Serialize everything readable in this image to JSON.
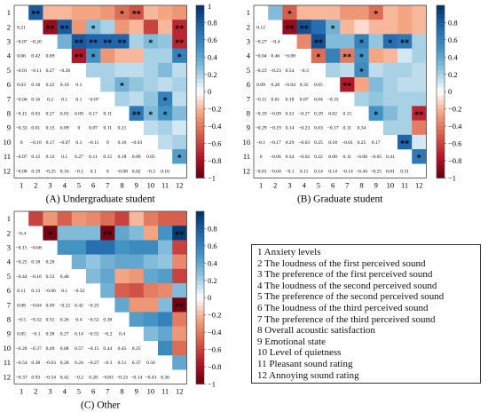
{
  "chart_data": [
    {
      "type": "heatmap",
      "title": "(A) Undergraduate student",
      "labels": [
        "1",
        "2",
        "3",
        "4",
        "5",
        "6",
        "7",
        "8",
        "9",
        "10",
        "11",
        "12"
      ],
      "colorbar": {
        "range": [
          -1,
          1
        ],
        "ticks": [
          "1",
          "0.8",
          "0.6",
          "0.4",
          "0.2",
          "0",
          "−0.2",
          "−0.4",
          "−0.6",
          "−0.8",
          "−1"
        ]
      },
      "lower": [
        [],
        [
          "0.21"
        ],
        [
          "−0.07",
          "−0.20"
        ],
        [
          "0.06",
          "0.42",
          "0.09"
        ],
        [
          "−0.01",
          "−0.11",
          "0.27",
          "−0.26"
        ],
        [
          "0.03",
          "0.18",
          "0.22",
          "0.19",
          "0.1"
        ],
        [
          "−0.06",
          "0.16",
          "0.2",
          "0.1",
          "0.1",
          "−0.07"
        ],
        [
          "−0.15",
          "0.03",
          "0.27",
          "0.03",
          "0.09",
          "0.17",
          "0.11"
        ],
        [
          "−0.33",
          "0.01",
          "0.13",
          "0.09",
          "0",
          "0.07",
          "0.11",
          "0.21"
        ],
        [
          "0",
          "−0.16",
          "0.17",
          "−0.07",
          "0.1",
          "−0.11",
          "0",
          "0.16",
          "−0.03"
        ],
        [
          "−0.07",
          "0.12",
          "0.12",
          "0.1",
          "0.27",
          "0.11",
          "0.15",
          "0.18",
          "0.09",
          "0.05"
        ],
        [
          "−0.08",
          "0.19",
          "−0.25",
          "0.16",
          "−0.1",
          "0.1",
          "0",
          "−0.08",
          "0.02",
          "−0.3",
          "0.16"
        ]
      ],
      "upper": [
        [
          null,
          0.8,
          -0.2,
          -0.2,
          -0.25,
          -0.25,
          -0.3,
          -0.45,
          -0.55,
          -0.2,
          -0.25,
          -0.3
        ],
        [
          null,
          null,
          -0.85,
          0.8,
          -0.3,
          0.3,
          0.2,
          -0.3,
          -0.2,
          -0.6,
          -0.2,
          -0.7
        ],
        [
          null,
          null,
          null,
          0.35,
          0.8,
          0.75,
          0.75,
          0.75,
          0.2,
          0.3,
          0.25,
          -0.7
        ],
        [
          null,
          null,
          null,
          null,
          -0.75,
          0.5,
          -0.3,
          -0.2,
          -0.2,
          0.2,
          0.2,
          0.6
        ],
        [
          null,
          null,
          null,
          null,
          null,
          0.2,
          0.2,
          0.15,
          0.15,
          0.2,
          0.3,
          0.15
        ],
        [
          null,
          null,
          null,
          null,
          null,
          null,
          0.2,
          0.35,
          0.25,
          0.2,
          0.15,
          0.2
        ],
        [
          null,
          null,
          null,
          null,
          null,
          null,
          null,
          0.2,
          0.15,
          0.25,
          0.6,
          0.15
        ],
        [
          null,
          null,
          null,
          null,
          null,
          null,
          null,
          null,
          0.65,
          0.3,
          0.5,
          0.3
        ],
        [
          null,
          null,
          null,
          null,
          null,
          null,
          null,
          null,
          null,
          0.15,
          0.2,
          0.1
        ],
        [
          null,
          null,
          null,
          null,
          null,
          null,
          null,
          null,
          null,
          null,
          0.15,
          0.2
        ],
        [
          null,
          null,
          null,
          null,
          null,
          null,
          null,
          null,
          null,
          null,
          null,
          0.45
        ],
        [
          null,
          null,
          null,
          null,
          null,
          null,
          null,
          null,
          null,
          null,
          null,
          null
        ]
      ],
      "stars": [
        [
          0,
          1,
          "**"
        ],
        [
          0,
          7,
          "*"
        ],
        [
          0,
          8,
          "**"
        ],
        [
          1,
          2,
          "**"
        ],
        [
          1,
          3,
          "**"
        ],
        [
          1,
          5,
          "*"
        ],
        [
          1,
          11,
          "**"
        ],
        [
          2,
          4,
          "**"
        ],
        [
          2,
          5,
          "**"
        ],
        [
          2,
          6,
          "**"
        ],
        [
          2,
          7,
          "**"
        ],
        [
          2,
          9,
          "*"
        ],
        [
          2,
          11,
          "**"
        ],
        [
          3,
          4,
          "**"
        ],
        [
          3,
          5,
          "*"
        ],
        [
          3,
          11,
          "*"
        ],
        [
          5,
          7,
          "*"
        ],
        [
          6,
          10,
          "*"
        ],
        [
          7,
          8,
          "**"
        ],
        [
          7,
          9,
          "*"
        ],
        [
          7,
          10,
          "*"
        ],
        [
          10,
          11,
          "*"
        ]
      ]
    },
    {
      "type": "heatmap",
      "title": "(B) Graduate student",
      "labels": [
        "1",
        "2",
        "3",
        "4",
        "5",
        "6",
        "7",
        "8",
        "9",
        "10",
        "11",
        "12"
      ],
      "colorbar": {
        "range": [
          -1,
          1
        ],
        "ticks": [
          "0.8",
          "0.6",
          "0.4",
          "0.2",
          "0",
          "−0.2",
          "−0.4",
          "−0.6",
          "−0.8",
          "−1"
        ]
      },
      "lower": [
        [],
        [
          "0.12"
        ],
        [
          "−0.27",
          "−0.4"
        ],
        [
          "−0.04",
          "0.46",
          "−0.08"
        ],
        [
          "−0.23",
          "−0.23",
          "0.54",
          "−0.3"
        ],
        [
          "0.09",
          "0.28",
          "−0.04",
          "0.35",
          "0.05"
        ],
        [
          "−0.11",
          "0.01",
          "0.18",
          "0.07",
          "0.04",
          "−0.35"
        ],
        [
          "−0.19",
          "−0.09",
          "0.33",
          "−0.27",
          "0.29",
          "0.02",
          "0.15"
        ],
        [
          "−0.29",
          "−0.19",
          "0.14",
          "−0.23",
          "0.03",
          "−0.17",
          "0.11",
          "0.34"
        ],
        [
          "−0.1",
          "−0.17",
          "0.29",
          "−0.03",
          "0.25",
          "0.18",
          "−0.01",
          "0.25",
          "0.17"
        ],
        [
          "0",
          "−0.06",
          "0.34",
          "−0.02",
          "0.22",
          "0.08",
          "0.11",
          "−0.08",
          "−0.05",
          "0.41"
        ],
        [
          "−0.01",
          "−0.04",
          "−0.1",
          "0.11",
          "0.14",
          "0.14",
          "−0.14",
          "−0.44",
          "−0.25",
          "0.01",
          "0.31"
        ]
      ],
      "upper": [
        [
          null,
          0.3,
          -0.5,
          -0.2,
          -0.2,
          -0.2,
          -0.3,
          -0.3,
          -0.45,
          -0.2,
          -0.25,
          -0.2
        ],
        [
          null,
          null,
          -0.85,
          0.85,
          0.7,
          0.35,
          -0.2,
          -0.1,
          -0.2,
          -0.2,
          -0.25,
          -0.2
        ],
        [
          null,
          null,
          null,
          -0.35,
          0.85,
          0.3,
          0.3,
          0.6,
          0.25,
          0.7,
          0.65,
          0.2
        ],
        [
          null,
          null,
          null,
          null,
          -0.45,
          0.6,
          -0.4,
          0.5,
          -0.25,
          -0.2,
          0.1,
          0.2
        ],
        [
          null,
          null,
          null,
          null,
          null,
          0.2,
          0.15,
          0.55,
          0.15,
          0.2,
          0.2,
          0.15
        ],
        [
          null,
          null,
          null,
          null,
          null,
          null,
          -0.75,
          -0.25,
          0.3,
          0.2,
          0.15,
          0.15
        ],
        [
          null,
          null,
          null,
          null,
          null,
          null,
          null,
          0.2,
          0.25,
          0.2,
          0.2,
          0.2
        ],
        [
          null,
          null,
          null,
          null,
          null,
          null,
          null,
          null,
          0.5,
          0.3,
          0.2,
          -0.7
        ],
        [
          null,
          null,
          null,
          null,
          null,
          null,
          null,
          null,
          null,
          0.2,
          0.2,
          -0.4
        ],
        [
          null,
          null,
          null,
          null,
          null,
          null,
          null,
          null,
          null,
          null,
          0.75,
          0.1
        ],
        [
          null,
          null,
          null,
          null,
          null,
          null,
          null,
          null,
          null,
          null,
          null,
          0.65
        ],
        [
          null,
          null,
          null,
          null,
          null,
          null,
          null,
          null,
          null,
          null,
          null,
          null
        ]
      ],
      "stars": [
        [
          0,
          2,
          "*"
        ],
        [
          0,
          8,
          "*"
        ],
        [
          1,
          2,
          "**"
        ],
        [
          1,
          3,
          "**"
        ],
        [
          1,
          5,
          "*"
        ],
        [
          2,
          4,
          "**"
        ],
        [
          2,
          7,
          "*"
        ],
        [
          2,
          9,
          "*"
        ],
        [
          2,
          10,
          "**"
        ],
        [
          3,
          4,
          "*"
        ],
        [
          3,
          6,
          "**"
        ],
        [
          3,
          7,
          "*"
        ],
        [
          4,
          7,
          "*"
        ],
        [
          5,
          6,
          "**"
        ],
        [
          7,
          8,
          "*"
        ],
        [
          7,
          11,
          "**"
        ],
        [
          9,
          10,
          "**"
        ],
        [
          10,
          11,
          "*"
        ]
      ]
    },
    {
      "type": "heatmap",
      "title": "(C) Other",
      "labels": [
        "1",
        "2",
        "3",
        "4",
        "5",
        "6",
        "7",
        "8",
        "9",
        "10",
        "11",
        "12"
      ],
      "colorbar": {
        "range": [
          -1,
          1
        ],
        "ticks": [
          "0.8",
          "0.6",
          "0.4",
          "0.2",
          "0",
          "−0.2",
          "−0.4",
          "−0.6",
          "−0.8",
          "−1"
        ]
      },
      "lower": [
        [],
        [
          "−0.4"
        ],
        [
          "−0.15",
          "−0.68"
        ],
        [
          "−0.25",
          "0.18",
          "0.28"
        ],
        [
          "−0.44",
          "−0.16",
          "0.33",
          "0.48"
        ],
        [
          "0.11",
          "0.13",
          "−0.06",
          "0.1",
          "−0.32"
        ],
        [
          "0.08",
          "−0.84",
          "0.49",
          "−0.22",
          "0.42",
          "−0.25"
        ],
        [
          "−0.5",
          "−0.32",
          "0.55",
          "0.26",
          "0.4",
          "−0.52",
          "0.38"
        ],
        [
          "0.05",
          "−0.1",
          "0.38",
          "0.27",
          "0.14",
          "−0.55",
          "−0.2",
          "0.4"
        ],
        [
          "−0.28",
          "−0.37",
          "0.49",
          "0.08",
          "0.57",
          "−0.15",
          "0.44",
          "0.45",
          "0.25"
        ],
        [
          "−0.54",
          "0.38",
          "−0.03",
          "0.28",
          "0.24",
          "−0.27",
          "−0.3",
          "0.51",
          "0.37",
          "0.56"
        ],
        [
          "−0.37",
          "0.93",
          "−0.54",
          "0.42",
          "−0.2",
          "0.28",
          "−0.83",
          "−0.23",
          "−0.14",
          "−0.43",
          "0.36"
        ]
      ],
      "upper": [
        [
          null,
          -0.6,
          -0.3,
          -0.5,
          -0.3,
          -0.35,
          -0.45,
          -0.6,
          -0.2,
          -0.4,
          -0.5,
          -0.5
        ],
        [
          null,
          null,
          -0.95,
          0.3,
          0.3,
          0.3,
          -0.95,
          0.4,
          0.3,
          -0.25,
          0.5,
          0.95
        ],
        [
          null,
          null,
          null,
          0.5,
          0.5,
          0.7,
          0.7,
          0.5,
          0.55,
          0.55,
          0.3,
          -0.6
        ],
        [
          null,
          null,
          null,
          null,
          0.35,
          0.25,
          0.35,
          0.4,
          0.4,
          0.3,
          0.25,
          -0.35
        ],
        [
          null,
          null,
          null,
          null,
          null,
          0.3,
          0.4,
          -0.25,
          -0.3,
          0.4,
          0.45,
          -0.6
        ],
        [
          null,
          null,
          null,
          null,
          null,
          null,
          0.35,
          -0.5,
          -0.55,
          -0.4,
          -0.35,
          0.3
        ],
        [
          null,
          null,
          null,
          null,
          null,
          null,
          null,
          0.4,
          -0.3,
          -0.3,
          0.3,
          -0.95
        ],
        [
          null,
          null,
          null,
          null,
          null,
          null,
          null,
          null,
          0.45,
          0.5,
          0.6,
          -0.4
        ],
        [
          null,
          null,
          null,
          null,
          null,
          null,
          null,
          null,
          null,
          0.3,
          0.4,
          -0.3
        ],
        [
          null,
          null,
          null,
          null,
          null,
          null,
          null,
          null,
          null,
          null,
          0.55,
          -0.45
        ],
        [
          null,
          null,
          null,
          null,
          null,
          null,
          null,
          null,
          null,
          null,
          null,
          0.4
        ],
        [
          null,
          null,
          null,
          null,
          null,
          null,
          null,
          null,
          null,
          null,
          null,
          null
        ]
      ],
      "stars": [
        [
          1,
          2,
          "*"
        ],
        [
          1,
          6,
          "**"
        ],
        [
          1,
          11,
          "**"
        ],
        [
          6,
          11,
          "**"
        ]
      ]
    }
  ],
  "legend": {
    "items": [
      "1  Anxiety levels",
      "2  The loudness of the first perceived sound",
      "3  The preference of the first perceived sound",
      "4  The loudness of the second perceived sound",
      "5  The preference of the second perceived sound",
      "6  The loudness of the third perceived sound",
      "7  The preference of the third perceived sound",
      "8  Overall acoustic satisfaction",
      "9  Emotional state",
      "10 Level of quietness",
      "11 Pleasant sound rating",
      "12 Annoying sound rating"
    ]
  }
}
